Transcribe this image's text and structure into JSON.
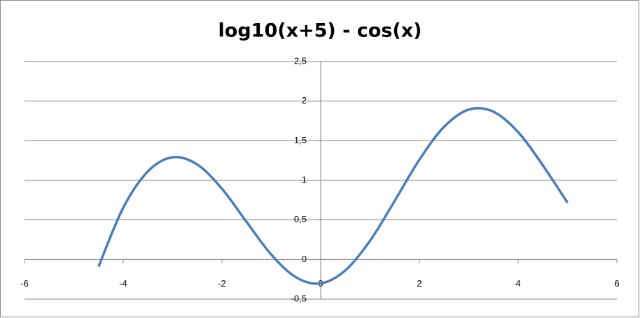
{
  "chart_data": {
    "type": "line",
    "title": "log10(x+5) - cos(x)",
    "x": [
      -4.5,
      -4,
      -3.5,
      -3,
      -2.5,
      -2,
      -1.5,
      -1,
      -0.5,
      0,
      0.5,
      1,
      1.5,
      2,
      2.5,
      3,
      3.5,
      4,
      4.5,
      5
    ],
    "series": [
      {
        "color": "#4a7ebb",
        "values": [
          -0.09,
          0.654,
          1.113,
          1.291,
          1.199,
          0.893,
          0.473,
          0.062,
          -0.224,
          -0.301,
          -0.137,
          0.238,
          0.742,
          1.261,
          1.676,
          1.893,
          1.866,
          1.608,
          1.189,
          0.716
        ]
      }
    ],
    "xlim": [
      -6,
      6
    ],
    "xticks": [
      -6,
      -4,
      -2,
      0,
      2,
      4,
      6
    ],
    "ylim": [
      -0.5,
      2.5
    ],
    "yticks": [
      {
        "value": -0.5,
        "label": "-0,5"
      },
      0,
      {
        "value": 0.5,
        "label": "0,5"
      },
      1,
      {
        "value": 1.5,
        "label": "1,5"
      },
      2,
      {
        "value": 2.5,
        "label": "2,5"
      }
    ],
    "grid": true
  }
}
